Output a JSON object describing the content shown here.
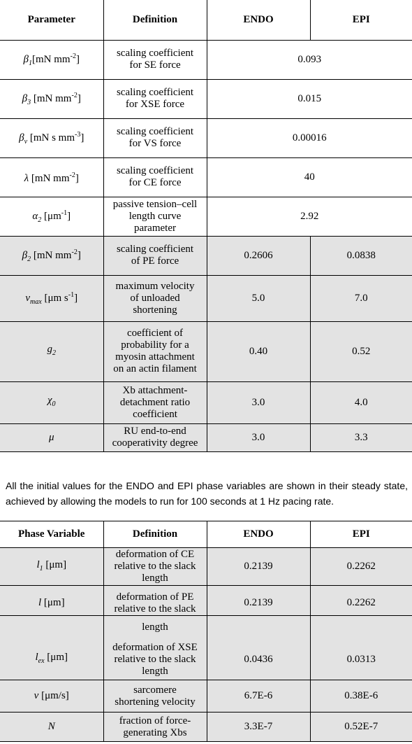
{
  "table1": {
    "headers": [
      "Parameter",
      "Definition",
      "ENDO",
      "EPI"
    ],
    "shared_rows": [
      {
        "sym": "β",
        "sub": "1",
        "unit_pre": "[mN mm",
        "unit_sup": "-2",
        "unit_post": "]",
        "def": [
          "scaling coefficient",
          "for SE force"
        ],
        "value": "0.093"
      },
      {
        "sym": "β",
        "sub": "3",
        "unit_pre": " [mN mm",
        "unit_sup": "-2",
        "unit_post": "]",
        "def": [
          "scaling coefficient",
          "for XSE force"
        ],
        "value": "0.015"
      },
      {
        "sym": "β",
        "sub": "v",
        "unit_pre": " [mN s mm",
        "unit_sup": "-3",
        "unit_post": "]",
        "def": [
          "scaling coefficient",
          "for VS force"
        ],
        "value": "0.00016"
      },
      {
        "sym": "λ",
        "sub": "",
        "unit_pre": " [mN mm",
        "unit_sup": "-2",
        "unit_post": "]",
        "def": [
          "scaling coefficient",
          "for CE force"
        ],
        "value": "40"
      },
      {
        "sym": "α",
        "sub": "2",
        "unit_pre": " [μm",
        "unit_sup": "-1",
        "unit_post": "]",
        "def": [
          "passive tension–cell",
          "length curve",
          "parameter"
        ],
        "value": "2.92"
      }
    ],
    "split_rows": [
      {
        "sym": "β",
        "sub": "2",
        "unit_pre": " [mN mm",
        "unit_sup": "-2",
        "unit_post": "]",
        "def": [
          "scaling coefficient",
          "of PE force"
        ],
        "endo": "0.2606",
        "epi": "0.0838"
      },
      {
        "sym": "v",
        "sub": "max",
        "unit_pre": " [μm s",
        "unit_sup": "-1",
        "unit_post": "]",
        "def": [
          "maximum velocity",
          "of unloaded",
          "shortening"
        ],
        "endo": "5.0",
        "epi": "7.0"
      },
      {
        "sym": "g",
        "sub": "2",
        "unit_pre": "",
        "unit_sup": "",
        "unit_post": "",
        "def": [
          "coefficient of",
          "probability for a",
          "myosin attachment",
          "on an actin filament"
        ],
        "endo": "0.40",
        "epi": "0.52"
      },
      {
        "sym": "χ",
        "sub": "0",
        "unit_pre": "",
        "unit_sup": "",
        "unit_post": "",
        "def": [
          "Xb attachment-",
          "detachment ratio",
          "coefficient"
        ],
        "endo": "3.0",
        "epi": "4.0"
      },
      {
        "sym": "μ",
        "sub": "",
        "unit_pre": "",
        "unit_sup": "",
        "unit_post": "",
        "def": [
          "RU end-to-end",
          "cooperativity degree"
        ],
        "endo": "3.0",
        "epi": "3.3"
      }
    ]
  },
  "paragraph": "All the initial values for the ENDO and EPI phase variables are shown in their steady state, achieved by allowing the models to run for 100 seconds at 1 Hz pacing rate.",
  "table2": {
    "headers": [
      "Phase Variable",
      "Definition",
      "ENDO",
      "EPI"
    ],
    "rows": [
      {
        "sym": "l",
        "sub": "1",
        "unit": " [μm]",
        "def": [
          "deformation of CE",
          "relative to the slack",
          "length"
        ],
        "endo": "0.2139",
        "epi": "0.2262"
      },
      {
        "sym": "l",
        "sub": "",
        "unit": " [μm]",
        "def": [
          "deformation of PE",
          "relative to the slack"
        ],
        "endo": "0.2139",
        "epi": "0.2262"
      }
    ]
  },
  "table3": {
    "leading_def": "length",
    "rows": [
      {
        "sym": "l",
        "sub": "ex",
        "unit": " [μm]",
        "def": [
          "deformation of XSE",
          "relative to the slack",
          "length"
        ],
        "endo": "0.0436",
        "epi": "0.0313"
      },
      {
        "sym": "v",
        "sub": "",
        "unit": " [μm/s]",
        "def": [
          "sarcomere",
          "shortening velocity"
        ],
        "endo": "6.7E-6",
        "epi": "0.38E-6"
      },
      {
        "sym": "N",
        "sub": "",
        "unit": "",
        "def": [
          "fraction of force-",
          "generating Xbs"
        ],
        "endo": "3.3E-7",
        "epi": "0.52E-7"
      }
    ]
  }
}
